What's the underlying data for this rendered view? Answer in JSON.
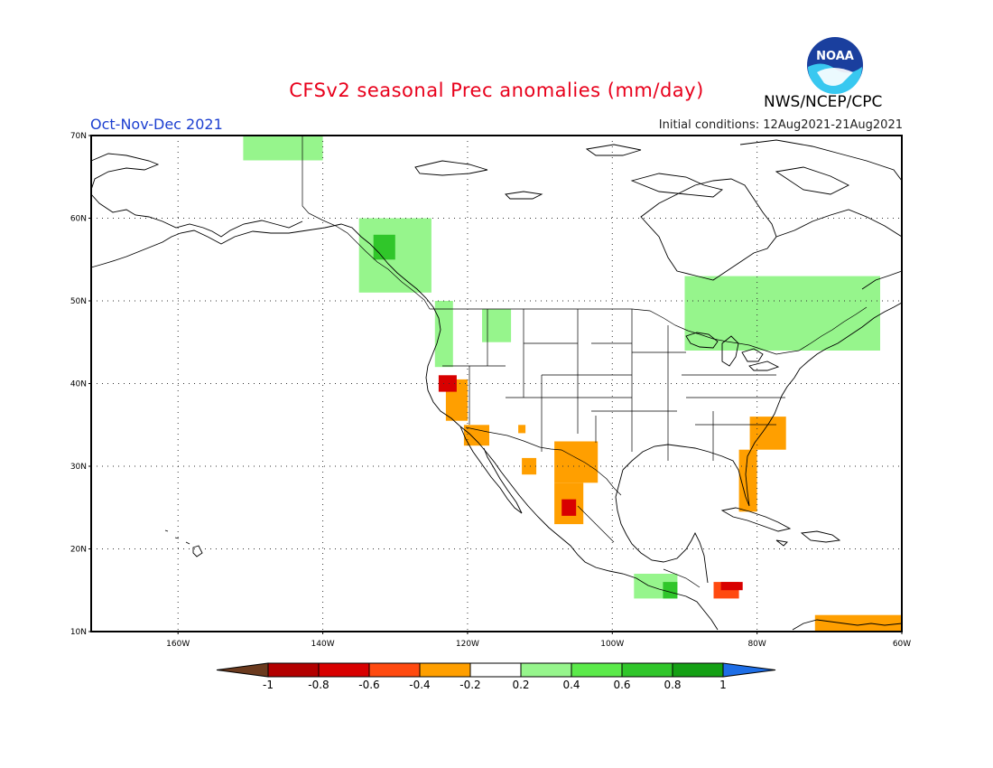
{
  "header": {
    "title": "CFSv2 seasonal Prec anomalies (mm/day)",
    "agency": "NWS/NCEP/CPC",
    "season": "Oct-Nov-Dec 2021",
    "initial_conditions": "Initial conditions: 12Aug2021-21Aug2021",
    "logo_text": "NOAA"
  },
  "axes": {
    "lat_labels": [
      "10N",
      "20N",
      "30N",
      "40N",
      "50N",
      "60N",
      "70N"
    ],
    "lon_labels": [
      "160W",
      "140W",
      "120W",
      "100W",
      "80W",
      "60W"
    ]
  },
  "colorbar": {
    "labels": [
      "-1",
      "-0.8",
      "-0.6",
      "-0.4",
      "-0.2",
      "0.2",
      "0.4",
      "0.6",
      "0.8",
      "1"
    ],
    "colors": [
      "#6b3a1e",
      "#b30000",
      "#d80000",
      "#ff4a10",
      "#ff9f00",
      "#ffffff",
      "#96f58c",
      "#5bea4a",
      "#30c62a",
      "#14a014",
      "#1e6ee6"
    ]
  },
  "chart_data": {
    "type": "heatmap",
    "lat_range": [
      10,
      70
    ],
    "lon_range": [
      -172,
      -60
    ],
    "grid": true,
    "colors": {
      "dry_strong": "#d80000",
      "dry": "#ff4a10",
      "dry_weak": "#ff9f00",
      "wet_weak": "#96f58c",
      "wet": "#5bea4a",
      "wet_strong": "#30c62a"
    },
    "anomaly_regions": [
      {
        "name": "northern California",
        "lat": [
          39,
          41
        ],
        "lon": [
          -124,
          -121.5
        ],
        "value": -0.6
      },
      {
        "name": "California coast",
        "lat": [
          35.5,
          40.5
        ],
        "lon": [
          -123,
          -120
        ],
        "value": -0.3
      },
      {
        "name": "southern California",
        "lat": [
          32.5,
          35
        ],
        "lon": [
          -120.5,
          -117
        ],
        "value": -0.3
      },
      {
        "name": "Arizona",
        "lat": [
          34,
          35
        ],
        "lon": [
          -113,
          -112
        ],
        "value": -0.3
      },
      {
        "name": "west Texas / Chihuahua",
        "lat": [
          28,
          33
        ],
        "lon": [
          -108,
          -102
        ],
        "value": -0.3
      },
      {
        "name": "Sinaloa",
        "lat": [
          23,
          28
        ],
        "lon": [
          -108,
          -104
        ],
        "value": -0.3
      },
      {
        "name": "Sinaloa core",
        "lat": [
          24,
          26
        ],
        "lon": [
          -107,
          -105
        ],
        "value": -0.6
      },
      {
        "name": "Baja California Sur",
        "lat": [
          29,
          31
        ],
        "lon": [
          -112.5,
          -110.5
        ],
        "value": -0.3
      },
      {
        "name": "Florida",
        "lat": [
          24.5,
          32
        ],
        "lon": [
          -82.5,
          -80
        ],
        "value": -0.3
      },
      {
        "name": "Carolinas coast",
        "lat": [
          32,
          36
        ],
        "lon": [
          -81,
          -76
        ],
        "value": -0.3
      },
      {
        "name": "Honduras / Nicaragua",
        "lat": [
          14,
          16
        ],
        "lon": [
          -86,
          -82.5
        ],
        "value": -0.4
      },
      {
        "name": "Nicaragua coast",
        "lat": [
          15,
          16
        ],
        "lon": [
          -85,
          -82
        ],
        "value": -0.6
      },
      {
        "name": "northern Venezuela",
        "lat": [
          10,
          12
        ],
        "lon": [
          -72,
          -60
        ],
        "value": -0.3
      },
      {
        "name": "Gulf of Alaska coast",
        "lat": [
          51,
          60
        ],
        "lon": [
          -135,
          -125
        ],
        "value": 0.3
      },
      {
        "name": "Alaska panhandle",
        "lat": [
          55,
          58
        ],
        "lon": [
          -133,
          -130
        ],
        "value": 0.6
      },
      {
        "name": "Pacific Northwest",
        "lat": [
          42,
          50
        ],
        "lon": [
          -124.5,
          -122
        ],
        "value": 0.3
      },
      {
        "name": "Montana",
        "lat": [
          45,
          49
        ],
        "lon": [
          -118,
          -114
        ],
        "value": 0.3
      },
      {
        "name": "Great Lakes / Quebec",
        "lat": [
          44,
          53
        ],
        "lon": [
          -90,
          -63
        ],
        "value": 0.3
      },
      {
        "name": "Southern Mexico",
        "lat": [
          14,
          17
        ],
        "lon": [
          -97,
          -91
        ],
        "value": 0.3
      },
      {
        "name": "Guatemala",
        "lat": [
          14,
          16
        ],
        "lon": [
          -93,
          -91
        ],
        "value": 0.6
      },
      {
        "name": "northern Canada",
        "lat": [
          67,
          70
        ],
        "lon": [
          -151,
          -140
        ],
        "value": 0.3
      }
    ]
  }
}
